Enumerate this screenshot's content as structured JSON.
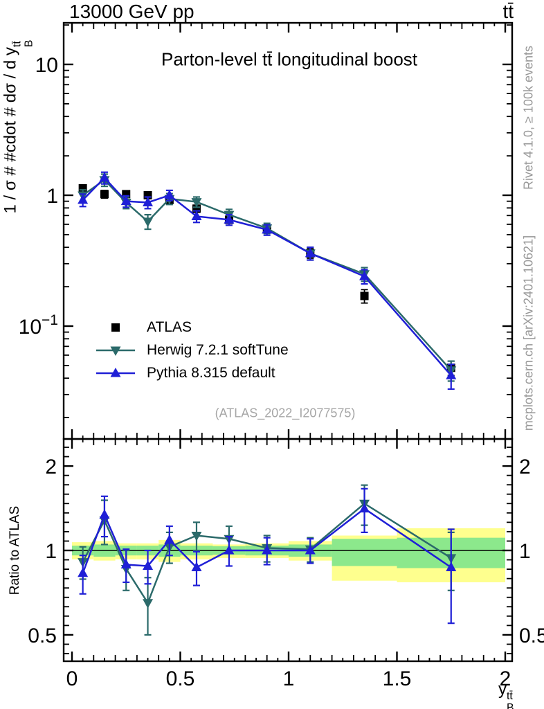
{
  "header": {
    "left": "13000 GeV pp",
    "right": "tt̄"
  },
  "title": "Parton-level tt̄ longitudinal boost",
  "watermark": "(ATLAS_2022_I2077575)",
  "side_texts": {
    "top_right": "Rivet 4.1.0, ≥ 100k events",
    "bottom_right": "mcplots.cern.ch [arXiv:2401.10621]"
  },
  "axes": {
    "y_main_label": {
      "prefix": "1 / σ # #cdot # dσ / d y",
      "sup": "tt̄",
      "sub": "B"
    },
    "x_label": {
      "base": "y",
      "sup": "tt̄",
      "sub": "B"
    },
    "ratio_label": "Ratio to ATLAS",
    "x_ticks": [
      {
        "v": 0,
        "label": "0"
      },
      {
        "v": 0.5,
        "label": "0.5"
      },
      {
        "v": 1,
        "label": "1"
      },
      {
        "v": 1.5,
        "label": "1.5"
      },
      {
        "v": 2,
        "label": "2"
      }
    ],
    "y_main_ticks": [
      {
        "v": 10,
        "label": "10"
      },
      {
        "v": 1,
        "label": "1"
      },
      {
        "v": 0.1,
        "label": "10",
        "sup": "−1"
      }
    ],
    "ratio_ticks": [
      {
        "v": 2,
        "label": "2"
      },
      {
        "v": 1,
        "label": "1"
      },
      {
        "v": 0.5,
        "label": "0.5"
      }
    ]
  },
  "legend": [
    {
      "label": "ATLAS",
      "marker": "square",
      "color": "#000000",
      "line": false
    },
    {
      "label": "Herwig 7.2.1 softTune",
      "marker": "triangle-down",
      "color": "#2b6a6a",
      "line": true
    },
    {
      "label": "Pythia 8.315 default",
      "marker": "triangle-up",
      "color": "#1f1fd6",
      "line": true
    }
  ],
  "chart_data": {
    "type": "line",
    "title": "Parton-level tt̄ longitudinal boost",
    "xlabel": "y_B^ttbar",
    "ylabel": "1 / sigma cdot dsigma / d y_B^ttbar",
    "x": [
      0.05,
      0.15,
      0.25,
      0.35,
      0.45,
      0.575,
      0.725,
      0.9,
      1.1,
      1.35,
      1.75
    ],
    "xlim": [
      -0.038,
      2.032
    ],
    "main_panel": {
      "ylog": true,
      "ylim": [
        0.0137,
        20.8
      ],
      "series": [
        {
          "name": "ATLAS",
          "marker": "square",
          "color": "#000000",
          "line": false,
          "values": [
            1.13,
            1.02,
            1.02,
            1.0,
            0.92,
            0.79,
            0.65,
            0.55,
            0.36,
            0.17,
            0.048
          ],
          "yerr": [
            0.07,
            0.07,
            0.06,
            0.06,
            0.06,
            0.05,
            0.04,
            0.035,
            0.03,
            0.02,
            0.006
          ]
        },
        {
          "name": "Herwig 7.2.1 softTune",
          "marker": "triangle-down",
          "color": "#2b6a6a",
          "line": true,
          "values": [
            1.0,
            1.31,
            0.88,
            0.63,
            0.94,
            0.89,
            0.71,
            0.56,
            0.36,
            0.25,
            0.046
          ],
          "yerr": [
            0.1,
            0.14,
            0.09,
            0.08,
            0.09,
            0.08,
            0.07,
            0.05,
            0.04,
            0.03,
            0.008
          ]
        },
        {
          "name": "Pythia 8.315 default",
          "marker": "triangle-up",
          "color": "#1f1fd6",
          "line": true,
          "values": [
            0.92,
            1.36,
            0.9,
            0.88,
            1.0,
            0.69,
            0.65,
            0.545,
            0.36,
            0.24,
            0.042
          ],
          "yerr": [
            0.1,
            0.14,
            0.09,
            0.09,
            0.09,
            0.07,
            0.06,
            0.05,
            0.04,
            0.03,
            0.009
          ]
        }
      ]
    },
    "ratio_panel": {
      "ylog": true,
      "ylim": [
        0.403,
        2.47
      ],
      "baseline": 1,
      "series": [
        {
          "name": "Herwig 7.2.1 softTune",
          "marker": "triangle-down",
          "color": "#2b6a6a",
          "line": true,
          "values": [
            0.91,
            1.28,
            0.86,
            0.65,
            1.03,
            1.13,
            1.1,
            1.02,
            1.01,
            1.47,
            0.94
          ],
          "yerr": [
            0.12,
            0.23,
            0.14,
            0.15,
            0.13,
            0.13,
            0.12,
            0.11,
            0.1,
            0.24,
            0.22
          ]
        },
        {
          "name": "Pythia 8.315 default",
          "marker": "triangle-up",
          "color": "#1f1fd6",
          "line": true,
          "values": [
            0.83,
            1.34,
            0.89,
            0.88,
            1.09,
            0.87,
            1.0,
            1.0,
            1.0,
            1.41,
            0.87
          ],
          "yerr": [
            0.13,
            0.22,
            0.12,
            0.12,
            0.13,
            0.12,
            0.12,
            0.11,
            0.1,
            0.25,
            0.32
          ]
        }
      ],
      "bands": {
        "yellow_color": "#feff8e",
        "green_color": "#8ce88c",
        "yellow": [
          [
            0.0,
            0.1,
            0.93,
            1.07
          ],
          [
            0.1,
            0.2,
            0.92,
            1.08
          ],
          [
            0.2,
            0.3,
            0.93,
            1.06
          ],
          [
            0.3,
            0.4,
            0.93,
            1.06
          ],
          [
            0.4,
            0.5,
            0.91,
            1.09
          ],
          [
            0.5,
            0.65,
            0.93,
            1.06
          ],
          [
            0.65,
            0.8,
            0.94,
            1.05
          ],
          [
            0.8,
            1.0,
            0.94,
            1.06
          ],
          [
            1.0,
            1.2,
            0.92,
            1.08
          ],
          [
            1.2,
            1.5,
            0.78,
            1.13
          ],
          [
            1.5,
            2.0,
            0.77,
            1.2
          ]
        ],
        "green": [
          [
            0.0,
            0.1,
            0.96,
            1.04
          ],
          [
            0.1,
            0.2,
            0.95,
            1.05
          ],
          [
            0.2,
            0.3,
            0.96,
            1.04
          ],
          [
            0.3,
            0.4,
            0.96,
            1.04
          ],
          [
            0.4,
            0.5,
            0.95,
            1.05
          ],
          [
            0.5,
            0.65,
            0.96,
            1.04
          ],
          [
            0.65,
            0.8,
            0.965,
            1.035
          ],
          [
            0.8,
            1.0,
            0.96,
            1.04
          ],
          [
            1.0,
            1.2,
            0.95,
            1.05
          ],
          [
            1.2,
            1.5,
            0.88,
            1.1
          ],
          [
            1.5,
            2.0,
            0.865,
            1.11
          ]
        ]
      }
    }
  }
}
